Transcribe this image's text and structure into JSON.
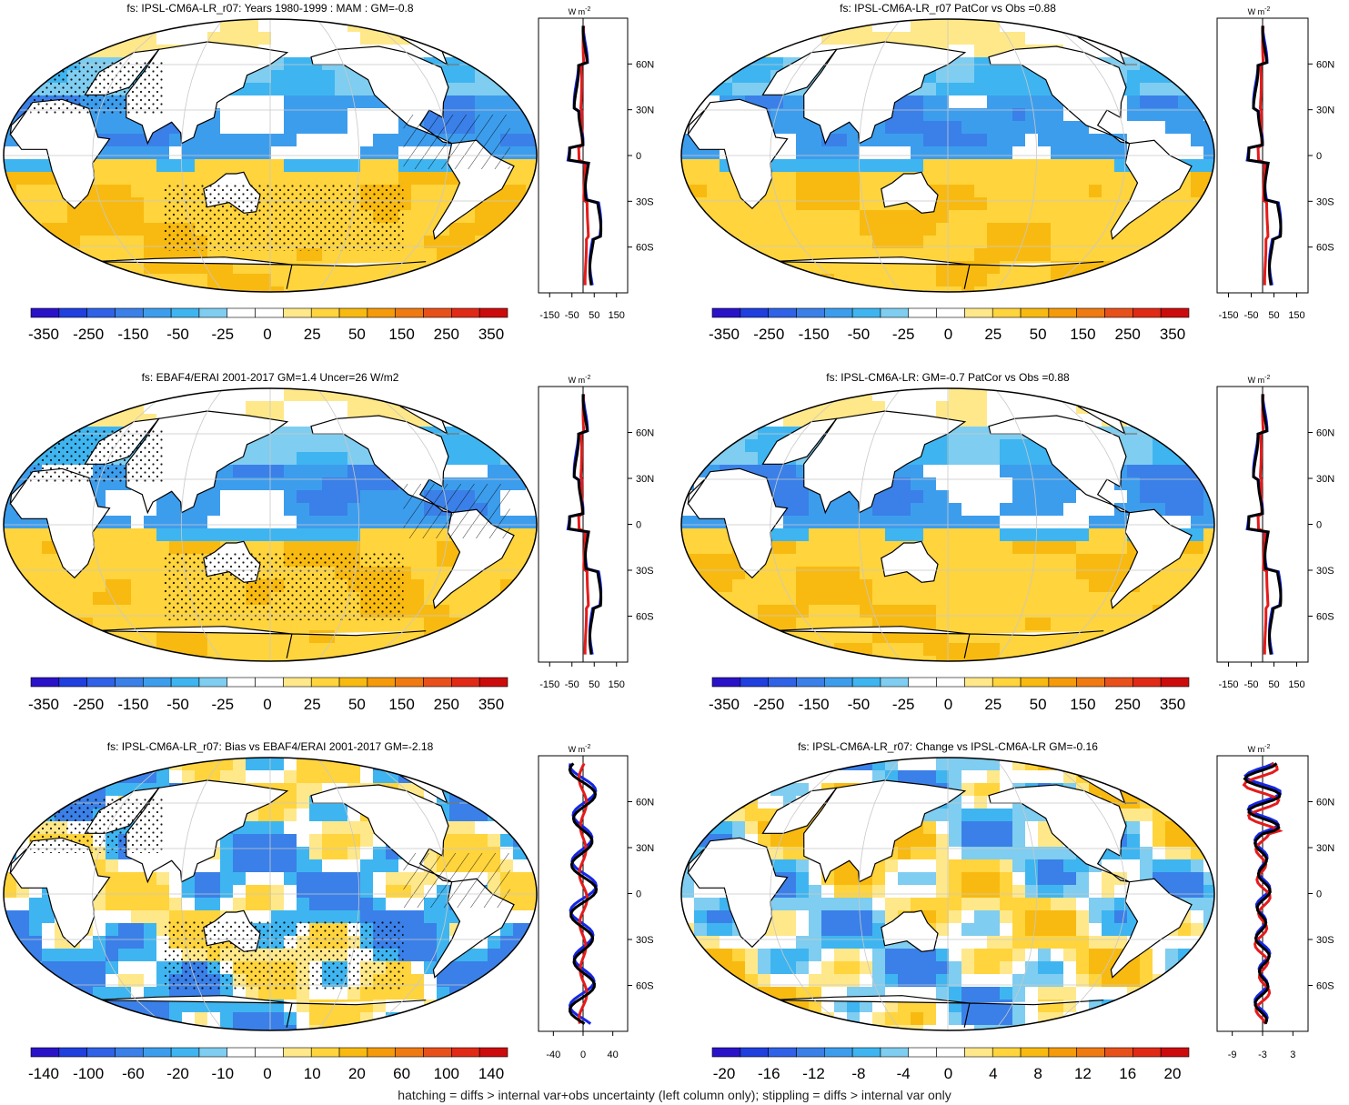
{
  "footer_note": "hatching = diffs > internal var+obs uncertainty (left column only); stippling = diffs > internal var only",
  "colors": {
    "palette": [
      "#2a12c8",
      "#1f3fde",
      "#2f62e6",
      "#3a80e8",
      "#3d9ded",
      "#3eb5f0",
      "#7fcdf0",
      "#ffffff",
      "#ffffff",
      "#ffe88a",
      "#ffd43d",
      "#f8ba10",
      "#f59a0a",
      "#ef7a12",
      "#e8501a",
      "#e02a16",
      "#cc0c0c"
    ],
    "land": "#ffffff",
    "line_blue": "#1426e6",
    "line_red": "#e61a1a",
    "line_black": "#000000",
    "grid": "#c8c8c8"
  },
  "zonal_lat_labels": [
    "60N",
    "30N",
    "0",
    "30S",
    "60S"
  ],
  "zonal_unit": "W m",
  "zonal_unit_sup": "-2",
  "panels": [
    {
      "title": "fs: IPSL-CM6A-LR_r07: Years 1980-1999 : MAM : GM=-0.8",
      "colorbar_labels": [
        "-350",
        "-250",
        "-150",
        "-50",
        "-25",
        "0",
        "25",
        "50",
        "150",
        "250",
        "350"
      ],
      "zonal_ticks": [
        "-150",
        "-50",
        "50",
        "150"
      ]
    },
    {
      "title": "fs: IPSL-CM6A-LR_r07 PatCor vs Obs =0.88",
      "colorbar_labels": [
        "-350",
        "-250",
        "-150",
        "-50",
        "-25",
        "0",
        "25",
        "50",
        "150",
        "250",
        "350"
      ],
      "zonal_ticks": [
        "-150",
        "-50",
        "50",
        "150"
      ]
    },
    {
      "title": "fs: EBAF4/ERAI 2001-2017 GM=1.4 Uncer=26 W/m2",
      "colorbar_labels": [
        "-350",
        "-250",
        "-150",
        "-50",
        "-25",
        "0",
        "25",
        "50",
        "150",
        "250",
        "350"
      ],
      "zonal_ticks": [
        "-150",
        "-50",
        "50",
        "150"
      ]
    },
    {
      "title": "fs: IPSL-CM6A-LR: GM=-0.7 PatCor vs Obs =0.88",
      "colorbar_labels": [
        "-350",
        "-250",
        "-150",
        "-50",
        "-25",
        "0",
        "25",
        "50",
        "150",
        "250",
        "350"
      ],
      "zonal_ticks": [
        "-150",
        "-50",
        "50",
        "150"
      ]
    },
    {
      "title": "fs: IPSL-CM6A-LR_r07: Bias vs EBAF4/ERAI 2001-2017 GM=-2.18",
      "colorbar_labels": [
        "-140",
        "-100",
        "-60",
        "-20",
        "-10",
        "0",
        "10",
        "20",
        "60",
        "100",
        "140"
      ],
      "zonal_ticks": [
        "-40",
        "0",
        "40"
      ]
    },
    {
      "title": "fs: IPSL-CM6A-LR_r07: Change vs IPSL-CM6A-LR GM=-0.16",
      "colorbar_labels": [
        "-20",
        "-16",
        "-12",
        "-8",
        "-4",
        "0",
        "4",
        "8",
        "12",
        "16",
        "20"
      ],
      "zonal_ticks": [
        "-9",
        "-3",
        "3"
      ]
    }
  ]
}
